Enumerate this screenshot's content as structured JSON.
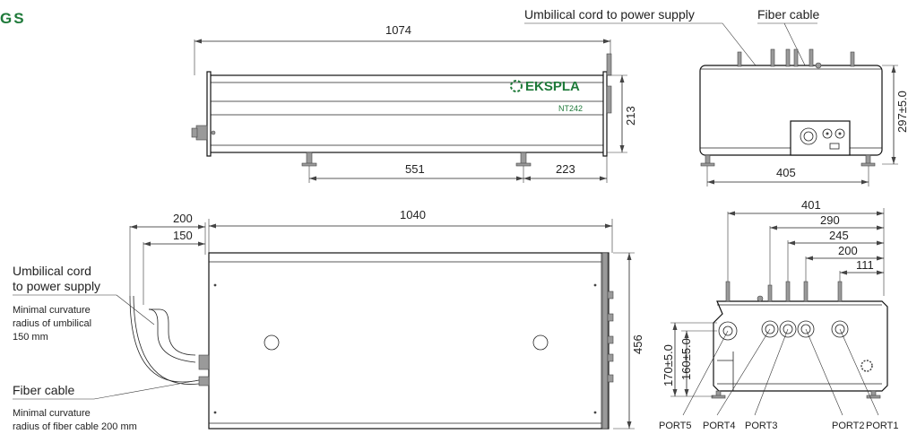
{
  "corner_text": "GS",
  "colors": {
    "brand_green": "#1f7a3a",
    "line": "#222222"
  },
  "top_view": {
    "logo_text": "EKSPLA",
    "model": "NT242",
    "dim_length": "1074",
    "dim_height": "213",
    "dim_feet_spacing": "551",
    "dim_foot_to_end": "223"
  },
  "end_view_top": {
    "label_umbilical": "Umbilical cord to power supply",
    "label_fiber": "Fiber cable",
    "dim_height": "297±5.0",
    "dim_width": "405"
  },
  "plan_view": {
    "dim_200": "200",
    "dim_150": "150",
    "dim_length": "1040",
    "dim_depth": "456",
    "label_umbilical_line1": "Umbilical cord",
    "label_umbilical_line2": "to power supply",
    "note_umbilical_line1": "Minimal curvature",
    "note_umbilical_line2": "radius of umbilical",
    "note_umbilical_line3": "150 mm",
    "label_fiber": "Fiber cable",
    "note_fiber_line1": "Minimal curvature",
    "note_fiber_line2": "radius of fiber cable 200 mm"
  },
  "ports_view": {
    "dim_401": "401",
    "dim_290": "290",
    "dim_245": "245",
    "dim_200": "200",
    "dim_111": "111",
    "dim_170": "170±5.0",
    "dim_160": "160±5.0",
    "ports": [
      "PORT5",
      "PORT4",
      "PORT3",
      "PORT2",
      "PORT1"
    ]
  }
}
